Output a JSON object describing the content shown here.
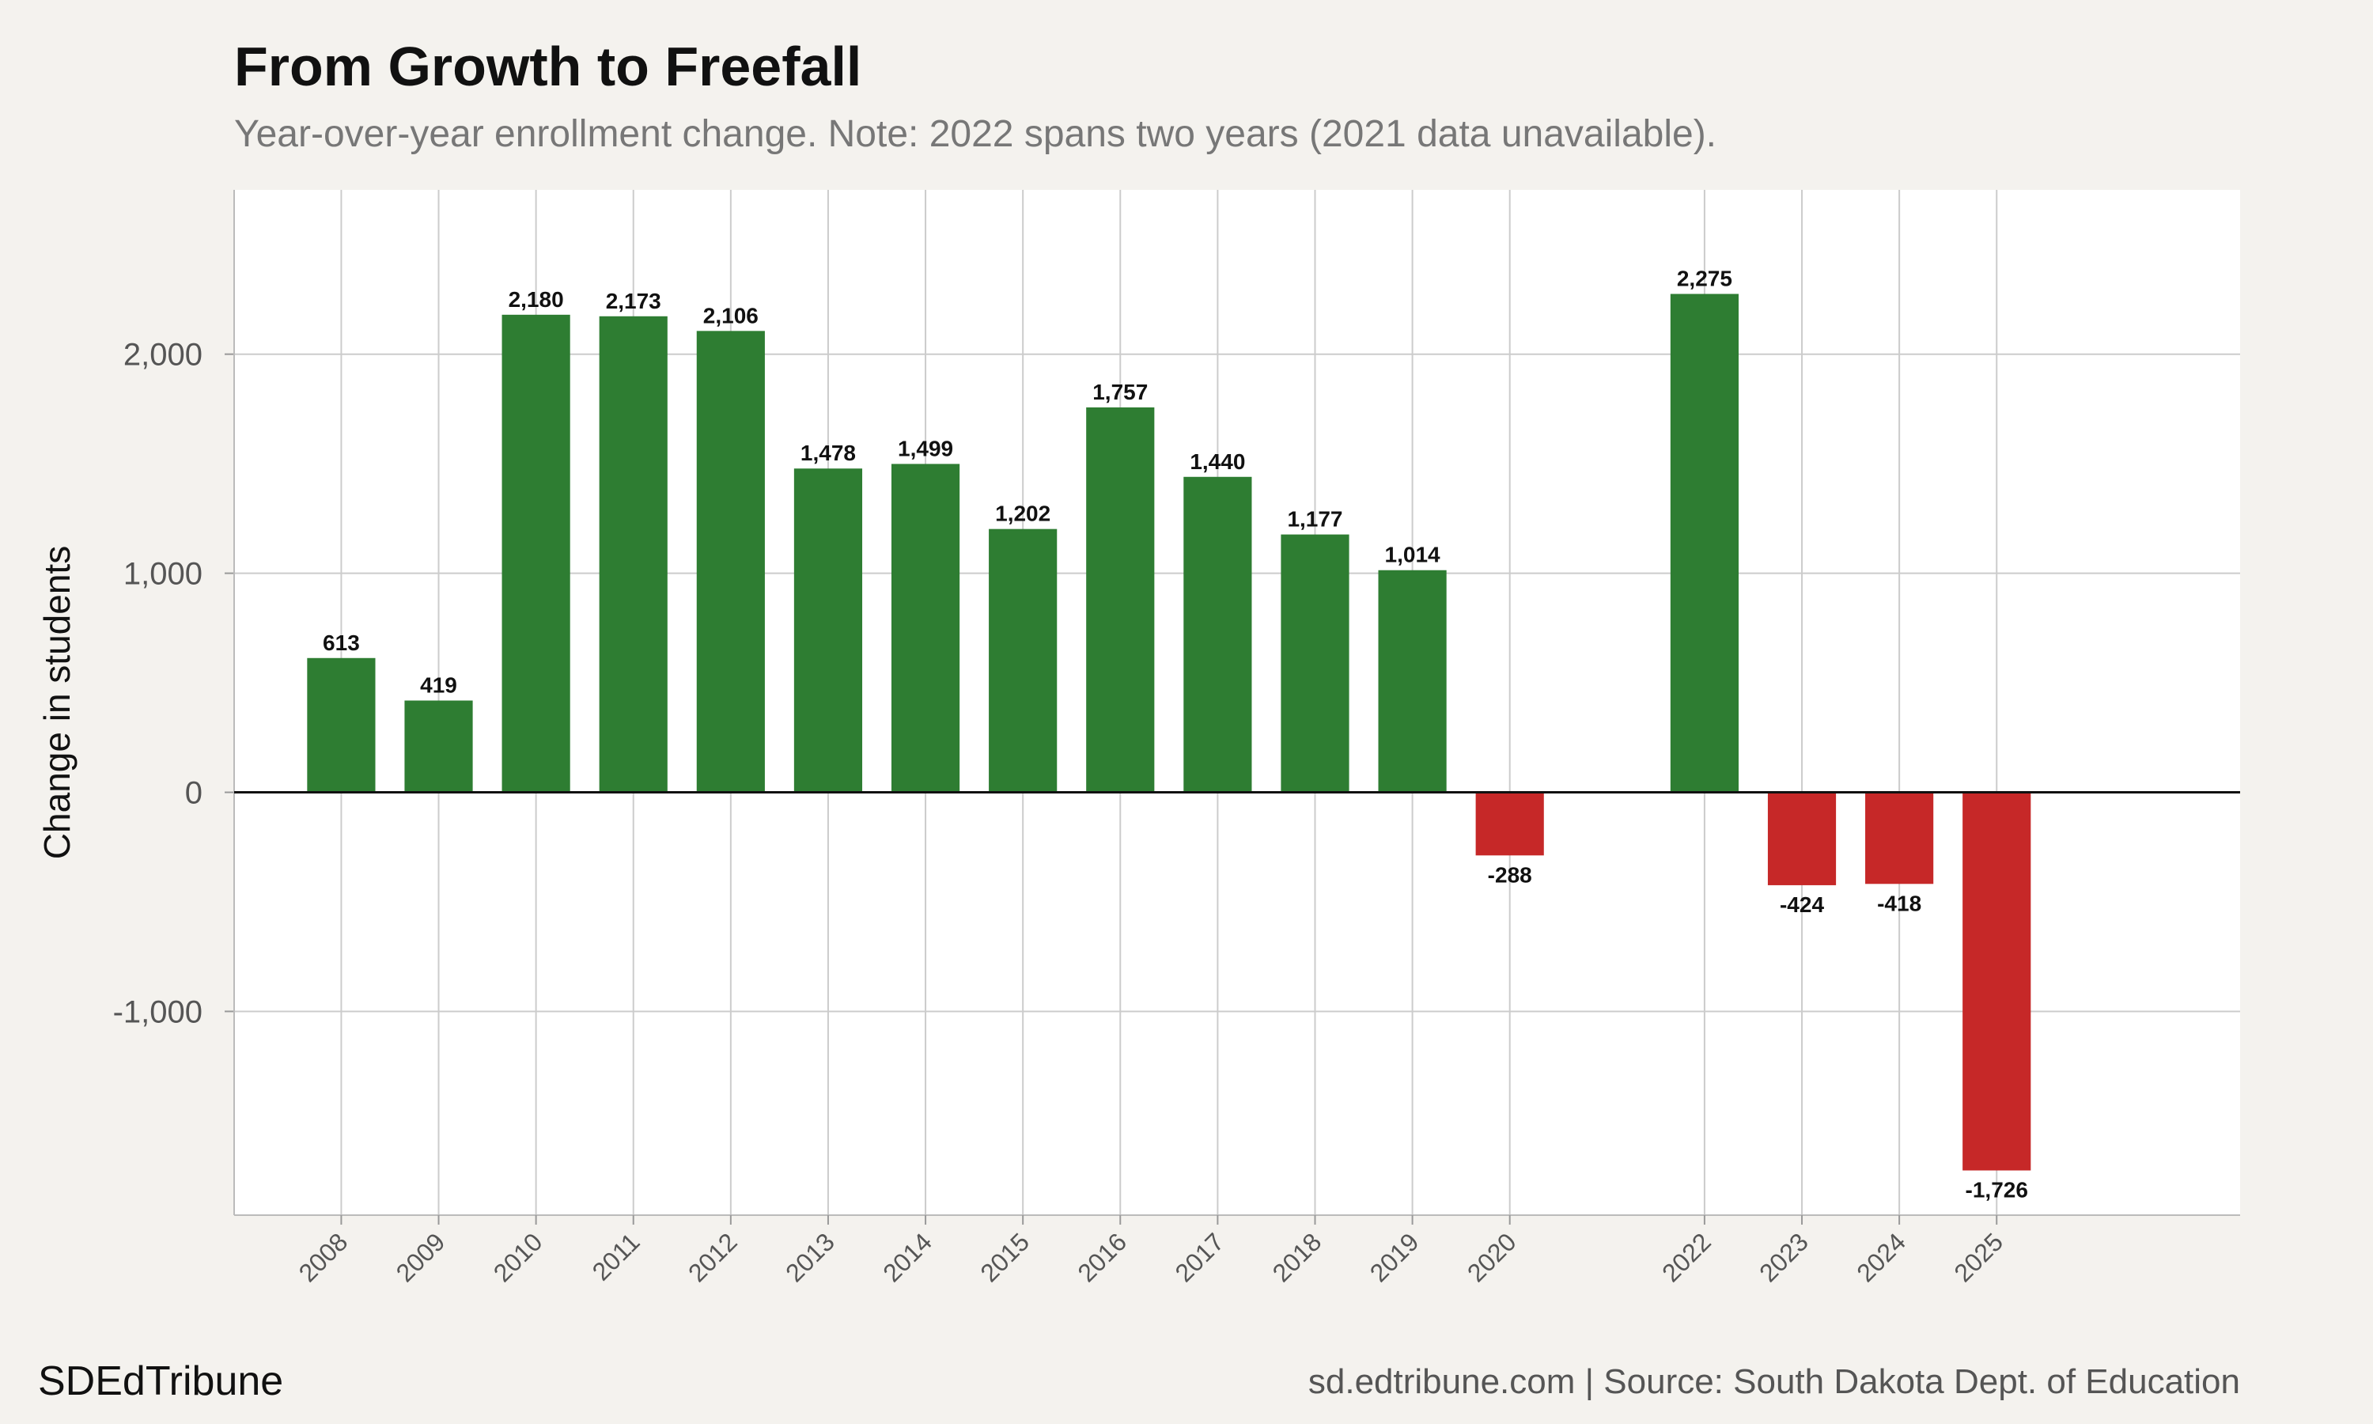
{
  "title": "From Growth to Freefall",
  "subtitle": "Year-over-year enrollment change. Note: 2022 spans two years (2021 data unavailable).",
  "brand": "SDEdTribune",
  "caption": "sd.edtribune.com | Source: South Dakota Dept. of Education",
  "colors": {
    "positive": "#2e7d32",
    "negative": "#c62828",
    "grid": "#cccccc",
    "zero_line": "#111111",
    "plot_bg": "#ffffff",
    "page_bg": "#f4f2ee"
  },
  "chart_data": {
    "type": "bar",
    "ylabel": "Change in students",
    "xlabel": "",
    "ylim": [
      -1930,
      2750
    ],
    "xlim": [
      2006.9,
      2027.5
    ],
    "yticks": [
      -1000,
      0,
      1000,
      2000
    ],
    "ytick_labels": [
      "-1,000",
      "0",
      "1,000",
      "2,000"
    ],
    "grid": true,
    "categories": [
      "2008",
      "2009",
      "2010",
      "2011",
      "2012",
      "2013",
      "2014",
      "2015",
      "2016",
      "2017",
      "2018",
      "2019",
      "2020",
      "2022",
      "2023",
      "2024",
      "2025"
    ],
    "x": [
      2008,
      2009,
      2010,
      2011,
      2012,
      2013,
      2014,
      2015,
      2016,
      2017,
      2018,
      2019,
      2020,
      2022,
      2023,
      2024,
      2025
    ],
    "values": [
      613,
      419,
      2180,
      2173,
      2106,
      1478,
      1499,
      1202,
      1757,
      1440,
      1177,
      1014,
      -288,
      2275,
      -424,
      -418,
      -1726
    ],
    "value_labels": [
      "613",
      "419",
      "2,180",
      "2,173",
      "2,106",
      "1,478",
      "1,499",
      "1,202",
      "1,757",
      "1,440",
      "1,177",
      "1,014",
      "-288",
      "2,275",
      "-424",
      "-418",
      "-1,726"
    ]
  }
}
